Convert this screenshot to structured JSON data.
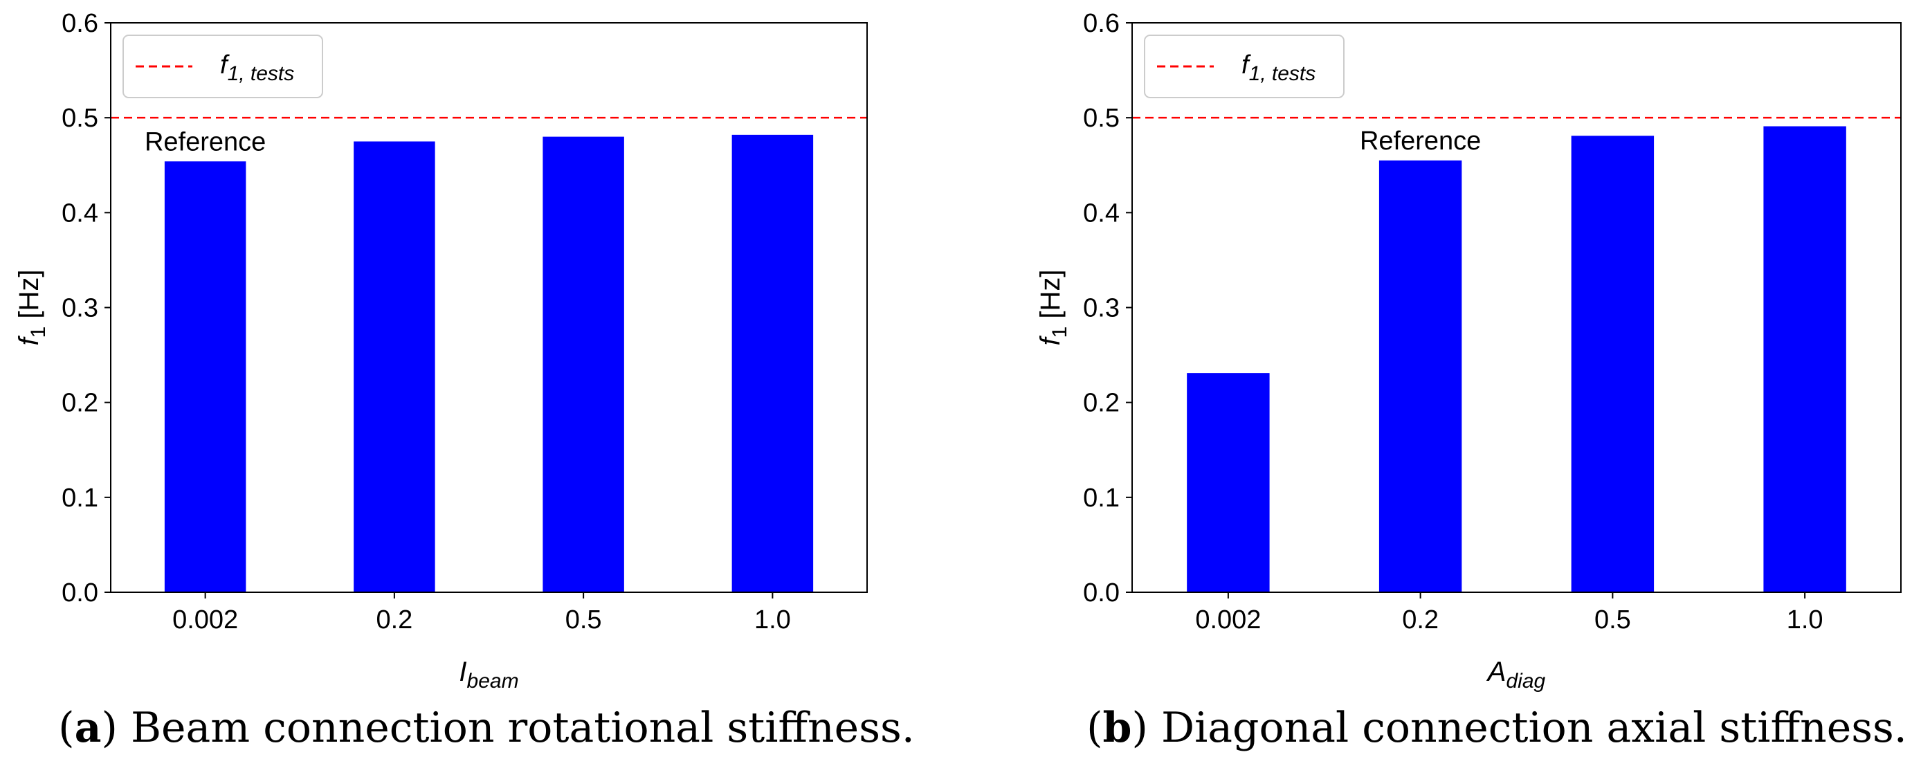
{
  "chart_data": [
    {
      "type": "bar",
      "panel": "a",
      "categories": [
        "0.002",
        "0.2",
        "0.5",
        "1.0"
      ],
      "values": [
        0.454,
        0.475,
        0.48,
        0.482
      ],
      "ylim": [
        0,
        0.6
      ],
      "yticks": [
        "0.0",
        "0.1",
        "0.2",
        "0.3",
        "0.4",
        "0.5",
        "0.6"
      ],
      "ylabel_main": "f",
      "ylabel_sub": "1",
      "ylabel_unit": " [Hz]",
      "xlabel_main": "I",
      "xlabel_sub": "beam",
      "reference_line": 0.5,
      "reference_label": "Reference",
      "reference_category_index": 0,
      "legend_main": "f",
      "legend_sub": "1, tests",
      "bar_color": "#0000ff",
      "line_color": "#ff0000",
      "caption_letter": "a",
      "caption_text": "Beam connection rotational stiffness."
    },
    {
      "type": "bar",
      "panel": "b",
      "categories": [
        "0.002",
        "0.2",
        "0.5",
        "1.0"
      ],
      "values": [
        0.231,
        0.455,
        0.481,
        0.491
      ],
      "ylim": [
        0,
        0.6
      ],
      "yticks": [
        "0.0",
        "0.1",
        "0.2",
        "0.3",
        "0.4",
        "0.5",
        "0.6"
      ],
      "ylabel_main": "f",
      "ylabel_sub": "1",
      "ylabel_unit": " [Hz]",
      "xlabel_main": "A",
      "xlabel_sub": "diag",
      "reference_line": 0.5,
      "reference_label": "Reference",
      "reference_category_index": 1,
      "legend_main": "f",
      "legend_sub": "1, tests",
      "bar_color": "#0000ff",
      "line_color": "#ff0000",
      "caption_letter": "b",
      "caption_text": "Diagonal connection axial stiffness."
    }
  ]
}
